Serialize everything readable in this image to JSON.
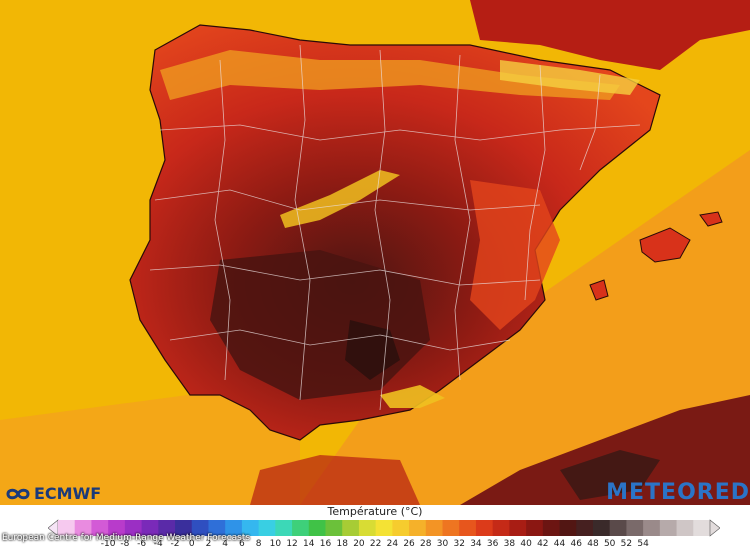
{
  "map": {
    "region": "Iberian Peninsula",
    "colors": {
      "sea_cool": "#f2b705",
      "sea_warm": "#f39a1e",
      "land_hot": "#d8321a",
      "land_very_hot": "#9e1a12",
      "land_extreme": "#5a1712",
      "highlands": "#f0c020",
      "borders": "#e8d8d8"
    }
  },
  "logos": {
    "left_text": "ECMWF",
    "left_icon": "ecmwf-logo-icon",
    "right_text": "METEORED"
  },
  "legend": {
    "title": "Température (°C)",
    "ticks": [
      "-10",
      "-8",
      "-6",
      "-4",
      "-2",
      "0",
      "2",
      "4",
      "6",
      "8",
      "10",
      "12",
      "14",
      "16",
      "18",
      "20",
      "22",
      "24",
      "26",
      "28",
      "30",
      "32",
      "34",
      "36",
      "38",
      "40",
      "42",
      "44",
      "46",
      "48",
      "50",
      "52",
      "54"
    ],
    "colors": [
      "#f6c9ef",
      "#e98be0",
      "#d35ad6",
      "#b83bcb",
      "#9b2fc4",
      "#7a2ab9",
      "#5a2aa8",
      "#3a2f9c",
      "#2f4fc0",
      "#2f6fd8",
      "#2f93e8",
      "#35b7ef",
      "#39cfe3",
      "#3cd8b7",
      "#3ed07a",
      "#40c247",
      "#6bc13a",
      "#a7cc35",
      "#d8dc34",
      "#f4e234",
      "#f6cc2e",
      "#f5b12a",
      "#f39425",
      "#ee7521",
      "#e7561d",
      "#dc3b1a",
      "#c52a17",
      "#a81d14",
      "#8b1712",
      "#6c1512",
      "#521613",
      "#462020",
      "#3a2a2a",
      "#5a4a4a",
      "#7a6a6a",
      "#9a8a8a",
      "#b6aaaa",
      "#cfc6c6",
      "#e2dcdc"
    ]
  },
  "source_credit": "European Centre for Medium-Range Weather Forecasts"
}
